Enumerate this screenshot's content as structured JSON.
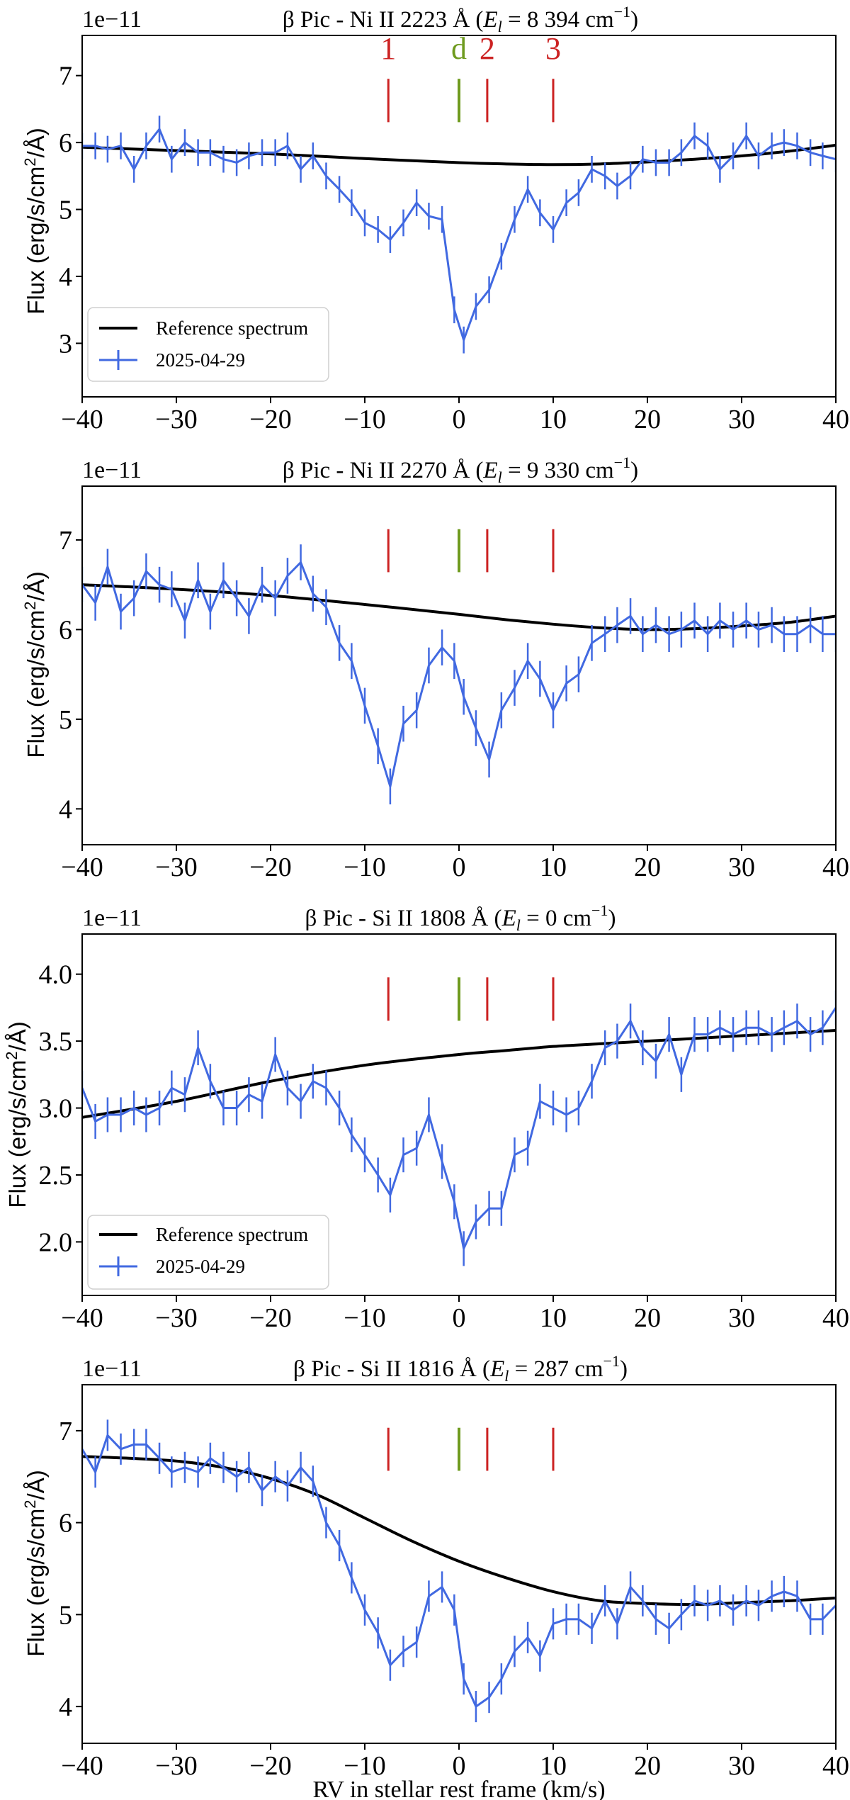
{
  "figure": {
    "xlabel": "RV in stellar rest frame (km/s)",
    "ylabel_text": "Flux (erg/s/cm²/Å)",
    "legend": {
      "reference": "Reference spectrum",
      "observation": "2025-04-29"
    },
    "colors": {
      "reference": "#000000",
      "observation": "#4169e1",
      "comet": "#cc2222",
      "disk": "#6f9b1f"
    }
  },
  "chart_data": [
    {
      "type": "line",
      "title": "β Pic  -  Ni II 2223 Å  (E_l = 8 394 cm⁻¹)",
      "title_plain": "β Pic  -  Ni II 2223 Å  (",
      "title_el": "= 8 394 cm",
      "offset": "1e−11",
      "xlim": [
        -40,
        40
      ],
      "ylim": [
        2.2,
        7.6
      ],
      "xticks": [
        -40,
        -30,
        -20,
        -10,
        0,
        10,
        20,
        30,
        40
      ],
      "yticks": [
        3,
        4,
        5,
        6,
        7
      ],
      "legend": true,
      "markers": [
        {
          "x": -7.5,
          "label": "1",
          "kind": "comet"
        },
        {
          "x": 0,
          "label": "d",
          "kind": "disk"
        },
        {
          "x": 3,
          "label": "2",
          "kind": "comet"
        },
        {
          "x": 10,
          "label": "3",
          "kind": "comet"
        }
      ],
      "reference": {
        "x": [
          -40,
          -30,
          -20,
          -10,
          0,
          5,
          10,
          15,
          20,
          25,
          30,
          35,
          40
        ],
        "y": [
          5.93,
          5.88,
          5.83,
          5.76,
          5.7,
          5.68,
          5.67,
          5.68,
          5.71,
          5.75,
          5.8,
          5.87,
          5.96
        ]
      },
      "observation": {
        "x": [
          -40,
          -38.6,
          -37.3,
          -35.9,
          -34.5,
          -33.2,
          -31.8,
          -30.5,
          -29.1,
          -27.7,
          -26.4,
          -25.0,
          -23.6,
          -22.3,
          -20.9,
          -19.5,
          -18.2,
          -16.8,
          -15.5,
          -14.1,
          -12.7,
          -11.4,
          -10.0,
          -8.6,
          -7.3,
          -5.9,
          -4.5,
          -3.2,
          -1.8,
          -0.5,
          0.5,
          1.8,
          3.2,
          4.5,
          5.9,
          7.3,
          8.6,
          10.0,
          11.4,
          12.7,
          14.1,
          15.5,
          16.8,
          18.2,
          19.5,
          20.9,
          22.3,
          23.6,
          25.0,
          26.4,
          27.7,
          29.1,
          30.5,
          31.8,
          33.2,
          34.5,
          35.9,
          37.3,
          38.6,
          40
        ],
        "y": [
          5.95,
          5.95,
          5.9,
          5.95,
          5.6,
          5.95,
          6.2,
          5.75,
          6.0,
          5.85,
          5.85,
          5.75,
          5.7,
          5.8,
          5.85,
          5.85,
          5.95,
          5.6,
          5.8,
          5.5,
          5.3,
          5.1,
          4.8,
          4.7,
          4.55,
          4.8,
          5.1,
          4.9,
          4.85,
          3.5,
          3.05,
          3.55,
          3.8,
          4.3,
          4.85,
          5.3,
          4.95,
          4.7,
          5.1,
          5.25,
          5.6,
          5.5,
          5.35,
          5.5,
          5.75,
          5.7,
          5.7,
          5.85,
          6.1,
          5.95,
          5.6,
          5.8,
          6.1,
          5.8,
          5.95,
          6.0,
          5.95,
          5.85,
          5.8,
          5.75
        ],
        "err": 0.2
      }
    },
    {
      "type": "line",
      "title": "β Pic  -  Ni II 2270 Å  (E_l = 9 330 cm⁻¹)",
      "title_plain": "β Pic  -  Ni II 2270 Å  (",
      "title_el": "= 9 330 cm",
      "offset": "1e−11",
      "xlim": [
        -40,
        40
      ],
      "ylim": [
        3.6,
        7.6
      ],
      "xticks": [
        -40,
        -30,
        -20,
        -10,
        0,
        10,
        20,
        30,
        40
      ],
      "yticks": [
        4,
        5,
        6,
        7
      ],
      "legend": false,
      "markers": [
        {
          "x": -7.5,
          "label": "",
          "kind": "comet"
        },
        {
          "x": 0,
          "label": "",
          "kind": "disk"
        },
        {
          "x": 3,
          "label": "",
          "kind": "comet"
        },
        {
          "x": 10,
          "label": "",
          "kind": "comet"
        }
      ],
      "reference": {
        "x": [
          -40,
          -30,
          -20,
          -10,
          0,
          5,
          10,
          15,
          20,
          25,
          30,
          35,
          40
        ],
        "y": [
          6.5,
          6.45,
          6.38,
          6.28,
          6.17,
          6.11,
          6.06,
          6.02,
          6.0,
          6.01,
          6.04,
          6.08,
          6.15
        ]
      },
      "observation": {
        "x": [
          -40,
          -38.6,
          -37.3,
          -35.9,
          -34.5,
          -33.2,
          -31.8,
          -30.5,
          -29.1,
          -27.7,
          -26.4,
          -25.0,
          -23.6,
          -22.3,
          -20.9,
          -19.5,
          -18.2,
          -16.8,
          -15.5,
          -14.1,
          -12.7,
          -11.4,
          -10.0,
          -8.6,
          -7.3,
          -5.9,
          -4.5,
          -3.2,
          -1.8,
          -0.5,
          0.5,
          1.8,
          3.2,
          4.5,
          5.9,
          7.3,
          8.6,
          10.0,
          11.4,
          12.7,
          14.1,
          15.5,
          16.8,
          18.2,
          19.5,
          20.9,
          22.3,
          23.6,
          25.0,
          26.4,
          27.7,
          29.1,
          30.5,
          31.8,
          33.2,
          34.5,
          35.9,
          37.3,
          38.6,
          40
        ],
        "y": [
          6.5,
          6.3,
          6.7,
          6.2,
          6.35,
          6.65,
          6.5,
          6.45,
          6.1,
          6.55,
          6.2,
          6.55,
          6.35,
          6.15,
          6.5,
          6.35,
          6.6,
          6.75,
          6.4,
          6.25,
          5.85,
          5.65,
          5.15,
          4.7,
          4.25,
          4.95,
          5.1,
          5.6,
          5.8,
          5.65,
          5.25,
          4.9,
          4.55,
          5.1,
          5.35,
          5.65,
          5.45,
          5.1,
          5.4,
          5.5,
          5.85,
          5.95,
          6.05,
          6.15,
          5.95,
          6.05,
          5.95,
          6.0,
          6.1,
          5.95,
          6.1,
          6.0,
          6.1,
          6.0,
          6.05,
          5.95,
          5.95,
          6.05,
          5.95,
          5.95
        ],
        "err": 0.2
      }
    },
    {
      "type": "line",
      "title": "β Pic  -  Si II 1808 Å  (E_l = 0 cm⁻¹)",
      "title_plain": "β Pic  -  Si II 1808 Å  (",
      "title_el": "= 0 cm",
      "offset": "1e−11",
      "xlim": [
        -40,
        40
      ],
      "ylim": [
        1.6,
        4.3
      ],
      "xticks": [
        -40,
        -30,
        -20,
        -10,
        0,
        10,
        20,
        30,
        40
      ],
      "yticks": [
        2.0,
        2.5,
        3.0,
        3.5,
        4.0
      ],
      "legend": true,
      "markers": [
        {
          "x": -7.5,
          "label": "",
          "kind": "comet"
        },
        {
          "x": 0,
          "label": "",
          "kind": "disk"
        },
        {
          "x": 3,
          "label": "",
          "kind": "comet"
        },
        {
          "x": 10,
          "label": "",
          "kind": "comet"
        }
      ],
      "reference": {
        "x": [
          -40,
          -30,
          -20,
          -10,
          0,
          5,
          10,
          15,
          20,
          25,
          30,
          35,
          40
        ],
        "y": [
          2.93,
          3.05,
          3.2,
          3.32,
          3.4,
          3.43,
          3.46,
          3.48,
          3.5,
          3.52,
          3.54,
          3.56,
          3.58
        ]
      },
      "observation": {
        "x": [
          -40,
          -38.6,
          -37.3,
          -35.9,
          -34.5,
          -33.2,
          -31.8,
          -30.5,
          -29.1,
          -27.7,
          -26.4,
          -25.0,
          -23.6,
          -22.3,
          -20.9,
          -19.5,
          -18.2,
          -16.8,
          -15.5,
          -14.1,
          -12.7,
          -11.4,
          -10.0,
          -8.6,
          -7.3,
          -5.9,
          -4.5,
          -3.2,
          -1.8,
          -0.5,
          0.5,
          1.8,
          3.2,
          4.5,
          5.9,
          7.3,
          8.6,
          10.0,
          11.4,
          12.7,
          14.1,
          15.5,
          16.8,
          18.2,
          19.5,
          20.9,
          22.3,
          23.6,
          25.0,
          26.4,
          27.7,
          29.1,
          30.5,
          31.8,
          33.2,
          34.5,
          35.9,
          37.3,
          38.6,
          40
        ],
        "y": [
          3.15,
          2.9,
          2.95,
          2.95,
          3.0,
          2.95,
          3.0,
          3.15,
          3.1,
          3.45,
          3.2,
          3.0,
          3.0,
          3.1,
          3.05,
          3.4,
          3.15,
          3.05,
          3.2,
          3.15,
          3.0,
          2.8,
          2.65,
          2.5,
          2.35,
          2.65,
          2.7,
          2.95,
          2.6,
          2.3,
          1.95,
          2.15,
          2.25,
          2.25,
          2.65,
          2.7,
          3.05,
          3.0,
          2.95,
          3.0,
          3.2,
          3.45,
          3.5,
          3.65,
          3.45,
          3.35,
          3.55,
          3.25,
          3.55,
          3.55,
          3.6,
          3.55,
          3.6,
          3.6,
          3.55,
          3.6,
          3.65,
          3.55,
          3.6,
          3.75
        ],
        "err": 0.13
      }
    },
    {
      "type": "line",
      "title": "β Pic  -  Si II 1816 Å  (E_l = 287 cm⁻¹)",
      "title_plain": "β Pic  -  Si II 1816 Å  (",
      "title_el": "= 287 cm",
      "offset": "1e−11",
      "xlim": [
        -40,
        40
      ],
      "ylim": [
        3.6,
        7.5
      ],
      "xticks": [
        -40,
        -30,
        -20,
        -10,
        0,
        10,
        20,
        30,
        40
      ],
      "yticks": [
        4,
        5,
        6,
        7
      ],
      "legend": false,
      "markers": [
        {
          "x": -7.5,
          "label": "",
          "kind": "comet"
        },
        {
          "x": 0,
          "label": "",
          "kind": "disk"
        },
        {
          "x": 3,
          "label": "",
          "kind": "comet"
        },
        {
          "x": 10,
          "label": "",
          "kind": "comet"
        }
      ],
      "reference": {
        "x": [
          -40,
          -35,
          -30,
          -25,
          -20,
          -15,
          -10,
          -5,
          0,
          5,
          10,
          15,
          20,
          25,
          30,
          35,
          40
        ],
        "y": [
          6.72,
          6.7,
          6.67,
          6.6,
          6.48,
          6.3,
          6.05,
          5.8,
          5.58,
          5.4,
          5.25,
          5.15,
          5.12,
          5.11,
          5.13,
          5.15,
          5.18
        ]
      },
      "observation": {
        "x": [
          -40,
          -38.6,
          -37.3,
          -35.9,
          -34.5,
          -33.2,
          -31.8,
          -30.5,
          -29.1,
          -27.7,
          -26.4,
          -25.0,
          -23.6,
          -22.3,
          -20.9,
          -19.5,
          -18.2,
          -16.8,
          -15.5,
          -14.1,
          -12.7,
          -11.4,
          -10.0,
          -8.6,
          -7.3,
          -5.9,
          -4.5,
          -3.2,
          -1.8,
          -0.5,
          0.5,
          1.8,
          3.2,
          4.5,
          5.9,
          7.3,
          8.6,
          10.0,
          11.4,
          12.7,
          14.1,
          15.5,
          16.8,
          18.2,
          19.5,
          20.9,
          22.3,
          23.6,
          25.0,
          26.4,
          27.7,
          29.1,
          30.5,
          31.8,
          33.2,
          34.5,
          35.9,
          37.3,
          38.6,
          40
        ],
        "y": [
          6.8,
          6.55,
          6.95,
          6.8,
          6.85,
          6.85,
          6.7,
          6.55,
          6.6,
          6.55,
          6.7,
          6.6,
          6.5,
          6.6,
          6.35,
          6.5,
          6.4,
          6.6,
          6.45,
          6.0,
          5.75,
          5.4,
          5.05,
          4.8,
          4.45,
          4.6,
          4.7,
          5.2,
          5.3,
          5.05,
          4.3,
          4.0,
          4.1,
          4.3,
          4.6,
          4.75,
          4.55,
          4.9,
          4.95,
          4.95,
          4.85,
          5.15,
          4.9,
          5.3,
          5.15,
          4.95,
          4.85,
          5.0,
          5.15,
          5.1,
          5.15,
          5.05,
          5.15,
          5.1,
          5.2,
          5.25,
          5.2,
          4.95,
          4.95,
          5.1
        ],
        "err": 0.17
      }
    }
  ]
}
